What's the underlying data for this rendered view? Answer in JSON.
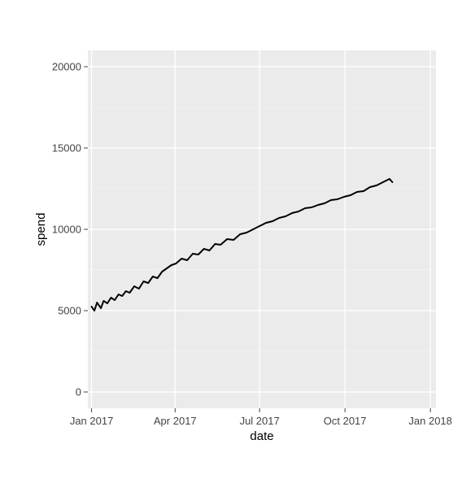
{
  "chart_data": {
    "type": "line",
    "title": "",
    "xlabel": "date",
    "ylabel": "spend",
    "x_range": [
      "2016-12-28",
      "2018-01-07"
    ],
    "ylim": [
      -1000,
      21000
    ],
    "x_ticks": [
      {
        "date": "2017-01-01",
        "label": "Jan 2017"
      },
      {
        "date": "2017-04-01",
        "label": "Apr 2017"
      },
      {
        "date": "2017-07-01",
        "label": "Jul 2017"
      },
      {
        "date": "2017-10-01",
        "label": "Oct 2017"
      },
      {
        "date": "2018-01-01",
        "label": "Jan 2018"
      }
    ],
    "y_ticks": [
      {
        "value": 0,
        "label": "0"
      },
      {
        "value": 5000,
        "label": "5000"
      },
      {
        "value": 10000,
        "label": "10000"
      },
      {
        "value": 15000,
        "label": "15000"
      },
      {
        "value": 20000,
        "label": "20000"
      }
    ],
    "grid": true,
    "line_color": "#000000",
    "panel_color": "#ebebeb",
    "series": [
      {
        "x": [
          "2017-01-01",
          "2017-01-04",
          "2017-01-07",
          "2017-01-11",
          "2017-01-14",
          "2017-01-18",
          "2017-01-22",
          "2017-01-26",
          "2017-01-30",
          "2017-02-03",
          "2017-02-07",
          "2017-02-11",
          "2017-02-16",
          "2017-02-21",
          "2017-02-26",
          "2017-03-03",
          "2017-03-08",
          "2017-03-13",
          "2017-03-18",
          "2017-03-23",
          "2017-03-28",
          "2017-04-02",
          "2017-04-08",
          "2017-04-14",
          "2017-04-20",
          "2017-04-26",
          "2017-05-02",
          "2017-05-08",
          "2017-05-14",
          "2017-05-20",
          "2017-05-27",
          "2017-06-03",
          "2017-06-10",
          "2017-06-17",
          "2017-06-24",
          "2017-07-01",
          "2017-07-08",
          "2017-07-15",
          "2017-07-22",
          "2017-07-29",
          "2017-08-05",
          "2017-08-12",
          "2017-08-19",
          "2017-08-26",
          "2017-09-02",
          "2017-09-09",
          "2017-09-16",
          "2017-09-23",
          "2017-09-30",
          "2017-10-07",
          "2017-10-14",
          "2017-10-21",
          "2017-10-28",
          "2017-11-04",
          "2017-11-11",
          "2017-11-18",
          "2017-11-21"
        ],
        "y": [
          5250,
          5000,
          5500,
          5150,
          5600,
          5450,
          5800,
          5650,
          6000,
          5900,
          6200,
          6100,
          6500,
          6350,
          6800,
          6700,
          7100,
          7000,
          7400,
          7600,
          7800,
          7900,
          8200,
          8100,
          8500,
          8450,
          8800,
          8700,
          9100,
          9050,
          9400,
          9350,
          9700,
          9800,
          10000,
          10200,
          10400,
          10500,
          10700,
          10800,
          11000,
          11100,
          11300,
          11350,
          11500,
          11600,
          11800,
          11850,
          12000,
          12100,
          12300,
          12350,
          12600,
          12700,
          12900,
          13100,
          12900
        ]
      }
    ]
  }
}
